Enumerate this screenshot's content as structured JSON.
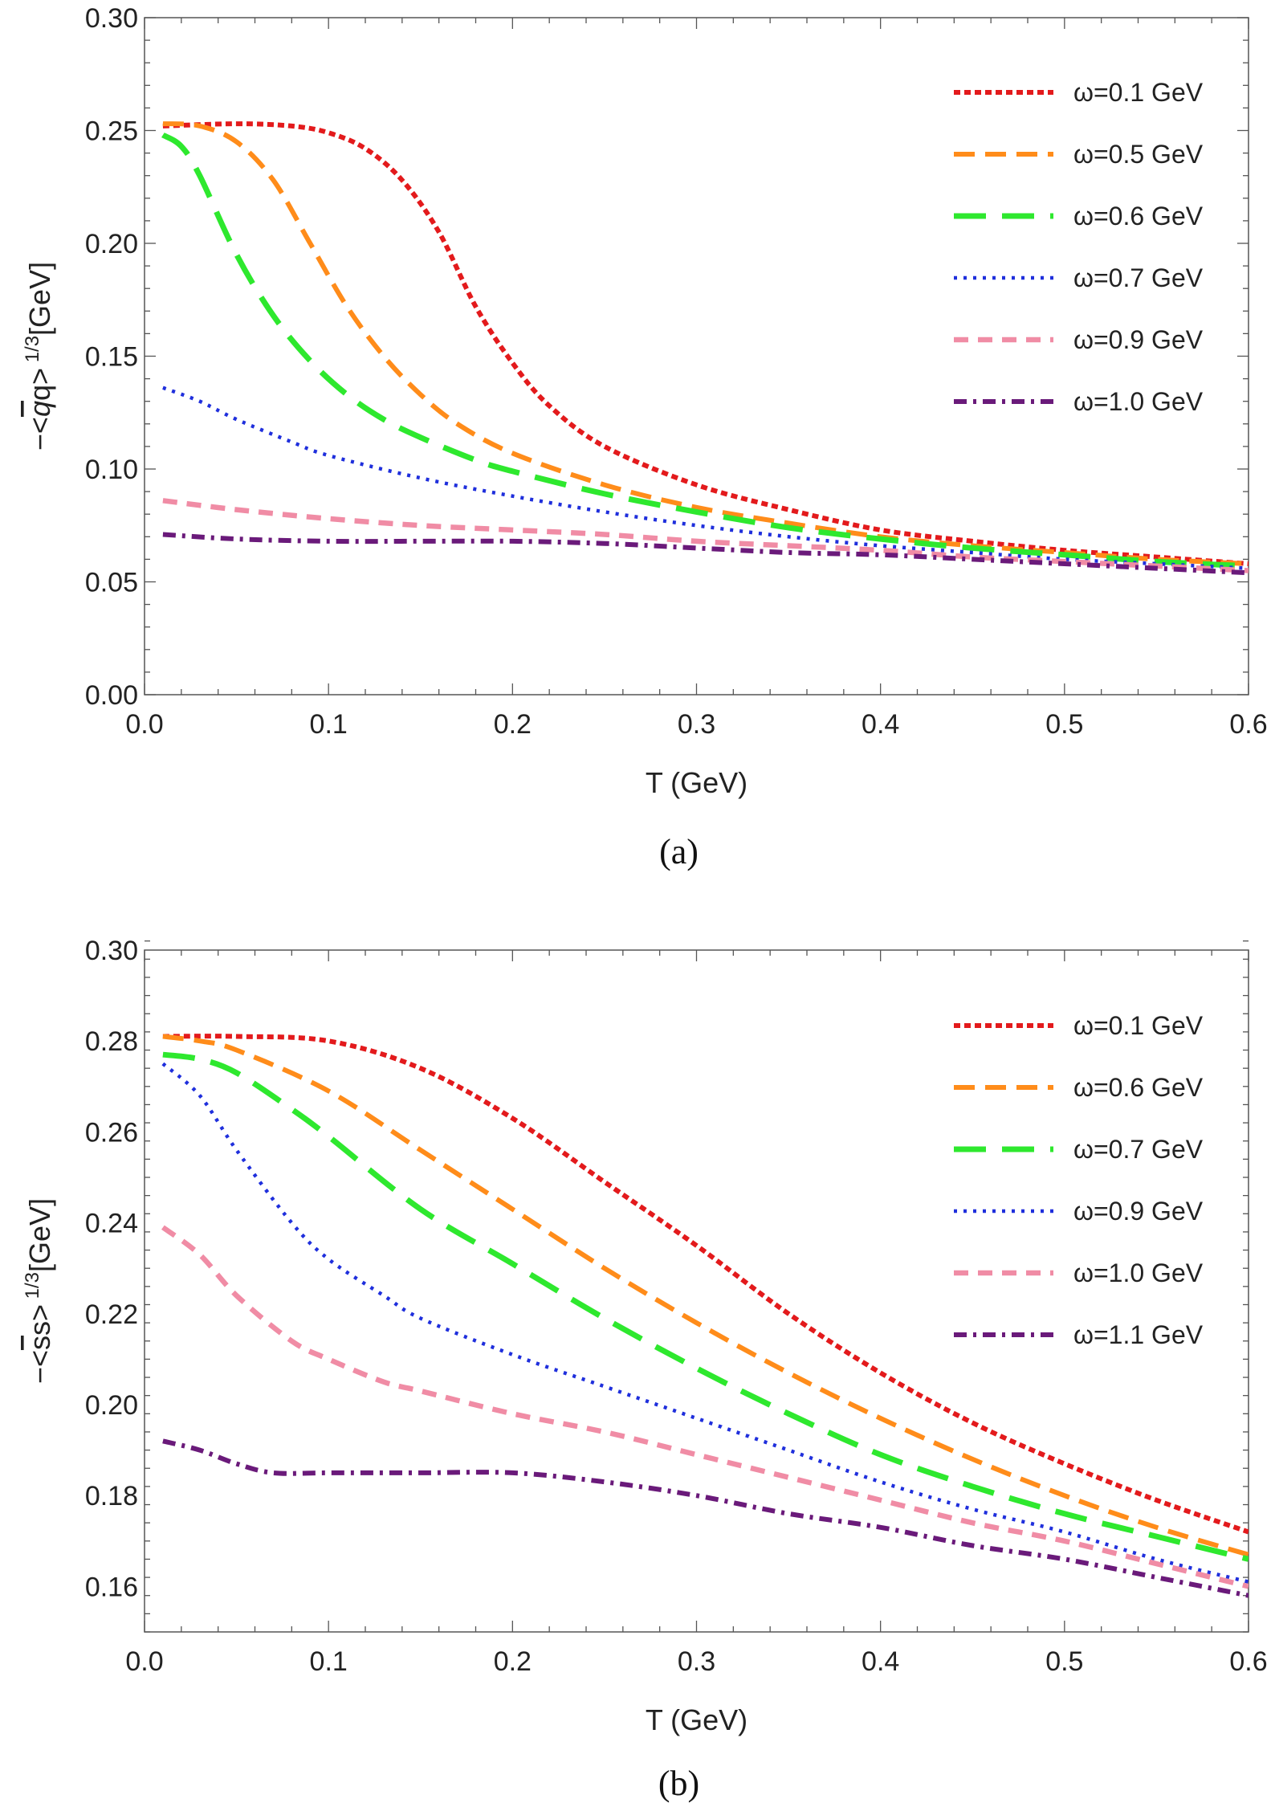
{
  "chart_data": [
    {
      "type": "line",
      "caption": "(a)",
      "xlabel": "T (GeV)",
      "ylabel": "−<q̅q>^1/3[GeV]",
      "ylabel_parts": {
        "prefix": "−<",
        "bar": "q",
        "mid": "q>",
        "sup": "1/3",
        "suffix": "[GeV]"
      },
      "xlim": [
        0,
        0.6
      ],
      "ylim": [
        0,
        0.3
      ],
      "xticks": [
        "0.0",
        "0.1",
        "0.2",
        "0.3",
        "0.4",
        "0.5",
        "0.6"
      ],
      "yticks": [
        "0.00",
        "0.05",
        "0.10",
        "0.15",
        "0.20",
        "0.25",
        "0.30"
      ],
      "grid": false,
      "legend_position": "top-right",
      "series": [
        {
          "name": "ω=0.1 GeV",
          "omega": "0.1",
          "color": "#e31a1c",
          "dash": "dot-dense",
          "x": [
            0.01,
            0.05,
            0.08,
            0.1,
            0.12,
            0.14,
            0.16,
            0.18,
            0.2,
            0.22,
            0.25,
            0.3,
            0.35,
            0.4,
            0.45,
            0.5,
            0.55,
            0.6
          ],
          "y": [
            0.252,
            0.253,
            0.252,
            0.249,
            0.242,
            0.228,
            0.205,
            0.172,
            0.147,
            0.128,
            0.11,
            0.093,
            0.082,
            0.073,
            0.068,
            0.064,
            0.061,
            0.058
          ]
        },
        {
          "name": "ω=0.5 GeV",
          "omega": "0.5",
          "color": "#ff8c1a",
          "dash": "dash",
          "x": [
            0.01,
            0.03,
            0.05,
            0.07,
            0.09,
            0.11,
            0.13,
            0.15,
            0.17,
            0.2,
            0.25,
            0.3,
            0.35,
            0.4,
            0.45,
            0.5,
            0.55,
            0.6
          ],
          "y": [
            0.253,
            0.252,
            0.245,
            0.228,
            0.2,
            0.172,
            0.15,
            0.133,
            0.12,
            0.107,
            0.093,
            0.083,
            0.076,
            0.07,
            0.066,
            0.063,
            0.06,
            0.058
          ]
        },
        {
          "name": "ω=0.6 GeV",
          "omega": "0.6",
          "color": "#2ee82e",
          "dash": "longdash",
          "x": [
            0.01,
            0.02,
            0.03,
            0.05,
            0.07,
            0.09,
            0.11,
            0.13,
            0.15,
            0.18,
            0.2,
            0.25,
            0.3,
            0.35,
            0.4,
            0.45,
            0.5,
            0.55,
            0.6
          ],
          "y": [
            0.248,
            0.243,
            0.23,
            0.195,
            0.168,
            0.148,
            0.133,
            0.122,
            0.114,
            0.104,
            0.099,
            0.089,
            0.081,
            0.074,
            0.069,
            0.065,
            0.062,
            0.059,
            0.057
          ]
        },
        {
          "name": "ω=0.7 GeV",
          "omega": "0.7",
          "color": "#1f2fdc",
          "dash": "dot",
          "x": [
            0.01,
            0.03,
            0.05,
            0.08,
            0.1,
            0.15,
            0.2,
            0.25,
            0.3,
            0.35,
            0.4,
            0.45,
            0.5,
            0.55,
            0.6
          ],
          "y": [
            0.136,
            0.13,
            0.122,
            0.112,
            0.106,
            0.096,
            0.088,
            0.081,
            0.075,
            0.07,
            0.066,
            0.063,
            0.06,
            0.058,
            0.056
          ]
        },
        {
          "name": "ω=0.9 GeV",
          "omega": "0.9",
          "color": "#f08ca5",
          "dash": "dash-short",
          "x": [
            0.01,
            0.05,
            0.1,
            0.15,
            0.2,
            0.25,
            0.3,
            0.35,
            0.4,
            0.45,
            0.5,
            0.55,
            0.6
          ],
          "y": [
            0.086,
            0.082,
            0.078,
            0.075,
            0.073,
            0.071,
            0.068,
            0.066,
            0.064,
            0.061,
            0.059,
            0.057,
            0.055
          ]
        },
        {
          "name": "ω=1.0 GeV",
          "omega": "1.0",
          "color": "#6a1a7a",
          "dash": "dashdot",
          "x": [
            0.01,
            0.05,
            0.1,
            0.15,
            0.2,
            0.25,
            0.3,
            0.35,
            0.4,
            0.45,
            0.5,
            0.55,
            0.6
          ],
          "y": [
            0.071,
            0.069,
            0.068,
            0.068,
            0.068,
            0.067,
            0.065,
            0.063,
            0.062,
            0.06,
            0.058,
            0.056,
            0.054
          ]
        }
      ]
    },
    {
      "type": "line",
      "caption": "(b)",
      "xlabel": "T (GeV)",
      "ylabel": "−<s̅s>^1/3[GeV]",
      "ylabel_parts": {
        "prefix": "−<",
        "bar": "s",
        "mid": "s>",
        "sup": "1/3",
        "suffix": "[GeV]"
      },
      "xlim": [
        0,
        0.6
      ],
      "ylim": [
        0.15,
        0.3
      ],
      "xticks": [
        "0.0",
        "0.1",
        "0.2",
        "0.3",
        "0.4",
        "0.5",
        "0.6"
      ],
      "yticks": [
        "0.16",
        "0.18",
        "0.20",
        "0.22",
        "0.24",
        "0.26",
        "0.28",
        "0.30"
      ],
      "grid": false,
      "legend_position": "top-right",
      "series": [
        {
          "name": "ω=0.1 GeV",
          "omega": "0.1",
          "color": "#e31a1c",
          "dash": "dot-dense",
          "x": [
            0.01,
            0.05,
            0.1,
            0.15,
            0.2,
            0.25,
            0.3,
            0.35,
            0.4,
            0.45,
            0.5,
            0.55,
            0.6
          ],
          "y": [
            0.281,
            0.281,
            0.28,
            0.274,
            0.263,
            0.249,
            0.235,
            0.22,
            0.207,
            0.196,
            0.187,
            0.179,
            0.172
          ]
        },
        {
          "name": "ω=0.6 GeV",
          "omega": "0.6",
          "color": "#ff8c1a",
          "dash": "dash",
          "x": [
            0.01,
            0.03,
            0.05,
            0.1,
            0.15,
            0.2,
            0.25,
            0.3,
            0.35,
            0.4,
            0.45,
            0.5,
            0.55,
            0.6
          ],
          "y": [
            0.281,
            0.28,
            0.278,
            0.269,
            0.256,
            0.243,
            0.23,
            0.218,
            0.207,
            0.197,
            0.188,
            0.18,
            0.173,
            0.167
          ]
        },
        {
          "name": "ω=0.7 GeV",
          "omega": "0.7",
          "color": "#2ee82e",
          "dash": "longdash",
          "x": [
            0.01,
            0.03,
            0.05,
            0.08,
            0.1,
            0.15,
            0.2,
            0.25,
            0.3,
            0.35,
            0.4,
            0.45,
            0.5,
            0.55,
            0.6
          ],
          "y": [
            0.277,
            0.276,
            0.273,
            0.265,
            0.259,
            0.243,
            0.231,
            0.219,
            0.208,
            0.198,
            0.189,
            0.182,
            0.176,
            0.171,
            0.166
          ]
        },
        {
          "name": "ω=0.9 GeV",
          "omega": "0.9",
          "color": "#1f2fdc",
          "dash": "dot",
          "x": [
            0.01,
            0.03,
            0.05,
            0.08,
            0.1,
            0.13,
            0.15,
            0.2,
            0.25,
            0.3,
            0.35,
            0.4,
            0.45,
            0.5,
            0.55,
            0.6
          ],
          "y": [
            0.275,
            0.268,
            0.256,
            0.24,
            0.232,
            0.224,
            0.219,
            0.211,
            0.204,
            0.197,
            0.19,
            0.183,
            0.177,
            0.172,
            0.166,
            0.161
          ]
        },
        {
          "name": "ω=1.0 GeV",
          "omega": "1.0",
          "color": "#f08ca5",
          "dash": "dash-short",
          "x": [
            0.01,
            0.03,
            0.05,
            0.08,
            0.1,
            0.13,
            0.15,
            0.2,
            0.25,
            0.3,
            0.35,
            0.4,
            0.45,
            0.5,
            0.55,
            0.6
          ],
          "y": [
            0.239,
            0.233,
            0.224,
            0.214,
            0.21,
            0.205,
            0.203,
            0.198,
            0.194,
            0.189,
            0.184,
            0.179,
            0.174,
            0.17,
            0.165,
            0.16
          ]
        },
        {
          "name": "ω=1.1 GeV",
          "omega": "1.1",
          "color": "#6a1a7a",
          "dash": "dashdot",
          "x": [
            0.01,
            0.03,
            0.05,
            0.07,
            0.1,
            0.15,
            0.2,
            0.25,
            0.3,
            0.35,
            0.4,
            0.45,
            0.5,
            0.55,
            0.6
          ],
          "y": [
            0.192,
            0.19,
            0.187,
            0.185,
            0.185,
            0.185,
            0.185,
            0.183,
            0.18,
            0.176,
            0.173,
            0.169,
            0.166,
            0.162,
            0.158
          ]
        }
      ]
    }
  ]
}
